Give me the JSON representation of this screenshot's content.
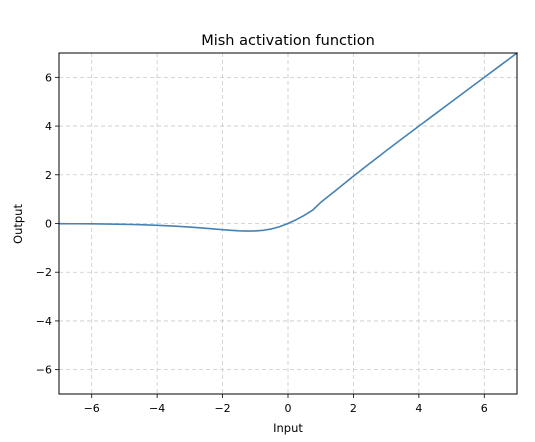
{
  "chart_data": {
    "type": "line",
    "title": "Mish activation function",
    "xlabel": "Input",
    "ylabel": "Output",
    "xlim": [
      -7,
      7
    ],
    "ylim": [
      -7,
      7
    ],
    "grid": true,
    "grid_style": "dashed",
    "x_ticks": [
      -6,
      -4,
      -2,
      0,
      2,
      4,
      6
    ],
    "y_ticks": [
      -6,
      -4,
      -2,
      0,
      2,
      4,
      6
    ],
    "x_tick_labels": [
      "−6",
      "−4",
      "−2",
      "0",
      "2",
      "4",
      "6"
    ],
    "y_tick_labels": [
      "−6",
      "−4",
      "−2",
      "0",
      "2",
      "4",
      "6"
    ],
    "series": [
      {
        "color": "#4682b4",
        "x": [
          -7,
          -6.5,
          -6,
          -5.5,
          -5,
          -4.5,
          -4,
          -3.5,
          -3,
          -2.5,
          -2,
          -1.75,
          -1.5,
          -1.25,
          -1.2,
          -1,
          -0.75,
          -0.5,
          -0.25,
          0,
          0.25,
          0.5,
          0.75,
          1,
          1.5,
          2,
          2.5,
          3,
          3.5,
          4,
          4.5,
          5,
          5.5,
          6,
          6.5,
          7
        ],
        "y": [
          -0.0064,
          -0.0098,
          -0.0149,
          -0.0224,
          -0.0336,
          -0.0498,
          -0.0727,
          -0.1045,
          -0.1456,
          -0.1958,
          -0.2525,
          -0.2781,
          -0.2993,
          -0.3103,
          -0.3088,
          -0.3034,
          -0.2781,
          -0.2217,
          -0.1267,
          0.0,
          0.1549,
          0.3375,
          0.5446,
          0.8651,
          1.4033,
          1.944,
          2.4686,
          2.9865,
          3.4956,
          3.9974,
          4.4982,
          4.9993,
          5.4997,
          5.9999,
          6.5,
          7.0
        ]
      }
    ]
  }
}
